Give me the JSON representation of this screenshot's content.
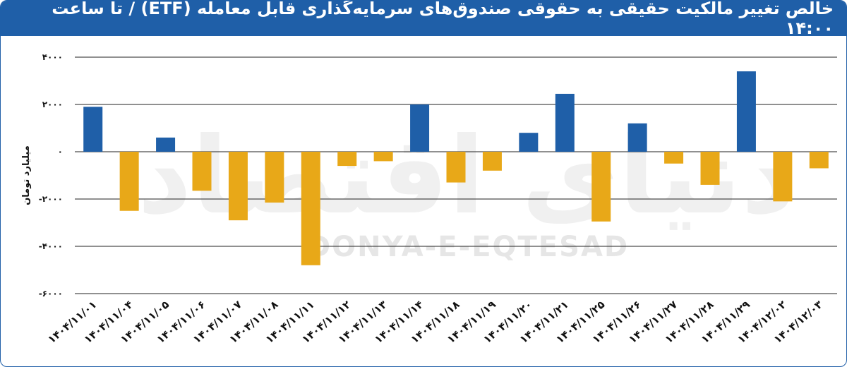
{
  "title": "خالص تغییر مالکیت حقیقی به حقوقی صندوق‌های سرمایه‌گذاری قابل معامله (ETF) / تا ساعت ۱۴:۰۰",
  "watermark": {
    "latin": "DONYA-E-EQTESAD",
    "farsi": "دنیای اقتصاد"
  },
  "colors": {
    "positive": "#1f5fa8",
    "negative": "#e8a818",
    "header": "#1f5fa8",
    "grid": "#222222"
  },
  "chart_data": {
    "type": "bar",
    "title": "خالص تغییر مالکیت حقیقی به حقوقی صندوق‌های سرمایه‌گذاری قابل معامله (ETF) / تا ساعت ۱۴:۰۰",
    "ylabel": "میلیارد تومان",
    "xlabel": "",
    "ylim": [
      -6000,
      4000
    ],
    "yticks": [
      4000,
      2000,
      0,
      -2000,
      -4000,
      -6000
    ],
    "ytick_labels": [
      "۴۰۰۰",
      "۲۰۰۰",
      "۰",
      "-۲۰۰۰",
      "-۴۰۰۰",
      "-۶۰۰۰"
    ],
    "grid": true,
    "categories": [
      "۱۴۰۴/۱۱/۰۱",
      "۱۴۰۴/۱۱/۰۴",
      "۱۴۰۴/۱۱/۰۵",
      "۱۴۰۴/۱۱/۰۶",
      "۱۴۰۴/۱۱/۰۷",
      "۱۴۰۴/۱۱/۰۸",
      "۱۴۰۴/۱۱/۱۱",
      "۱۴۰۴/۱۱/۱۲",
      "۱۴۰۴/۱۱/۱۳",
      "۱۴۰۴/۱۱/۱۴",
      "۱۴۰۴/۱۱/۱۸",
      "۱۴۰۴/۱۱/۱۹",
      "۱۴۰۴/۱۱/۲۰",
      "۱۴۰۴/۱۱/۲۱",
      "۱۴۰۴/۱۱/۲۵",
      "۱۴۰۴/۱۱/۲۶",
      "۱۴۰۴/۱۱/۲۷",
      "۱۴۰۴/۱۱/۲۸",
      "۱۴۰۴/۱۱/۲۹",
      "۱۴۰۴/۱۲/۰۲",
      "۱۴۰۴/۱۲/۰۳"
    ],
    "values": [
      1900,
      -2500,
      600,
      -1650,
      -2900,
      -2150,
      -4800,
      -600,
      -400,
      2000,
      -1300,
      -800,
      800,
      2450,
      -2950,
      1200,
      -500,
      -1400,
      3400,
      -2100,
      -700
    ]
  }
}
